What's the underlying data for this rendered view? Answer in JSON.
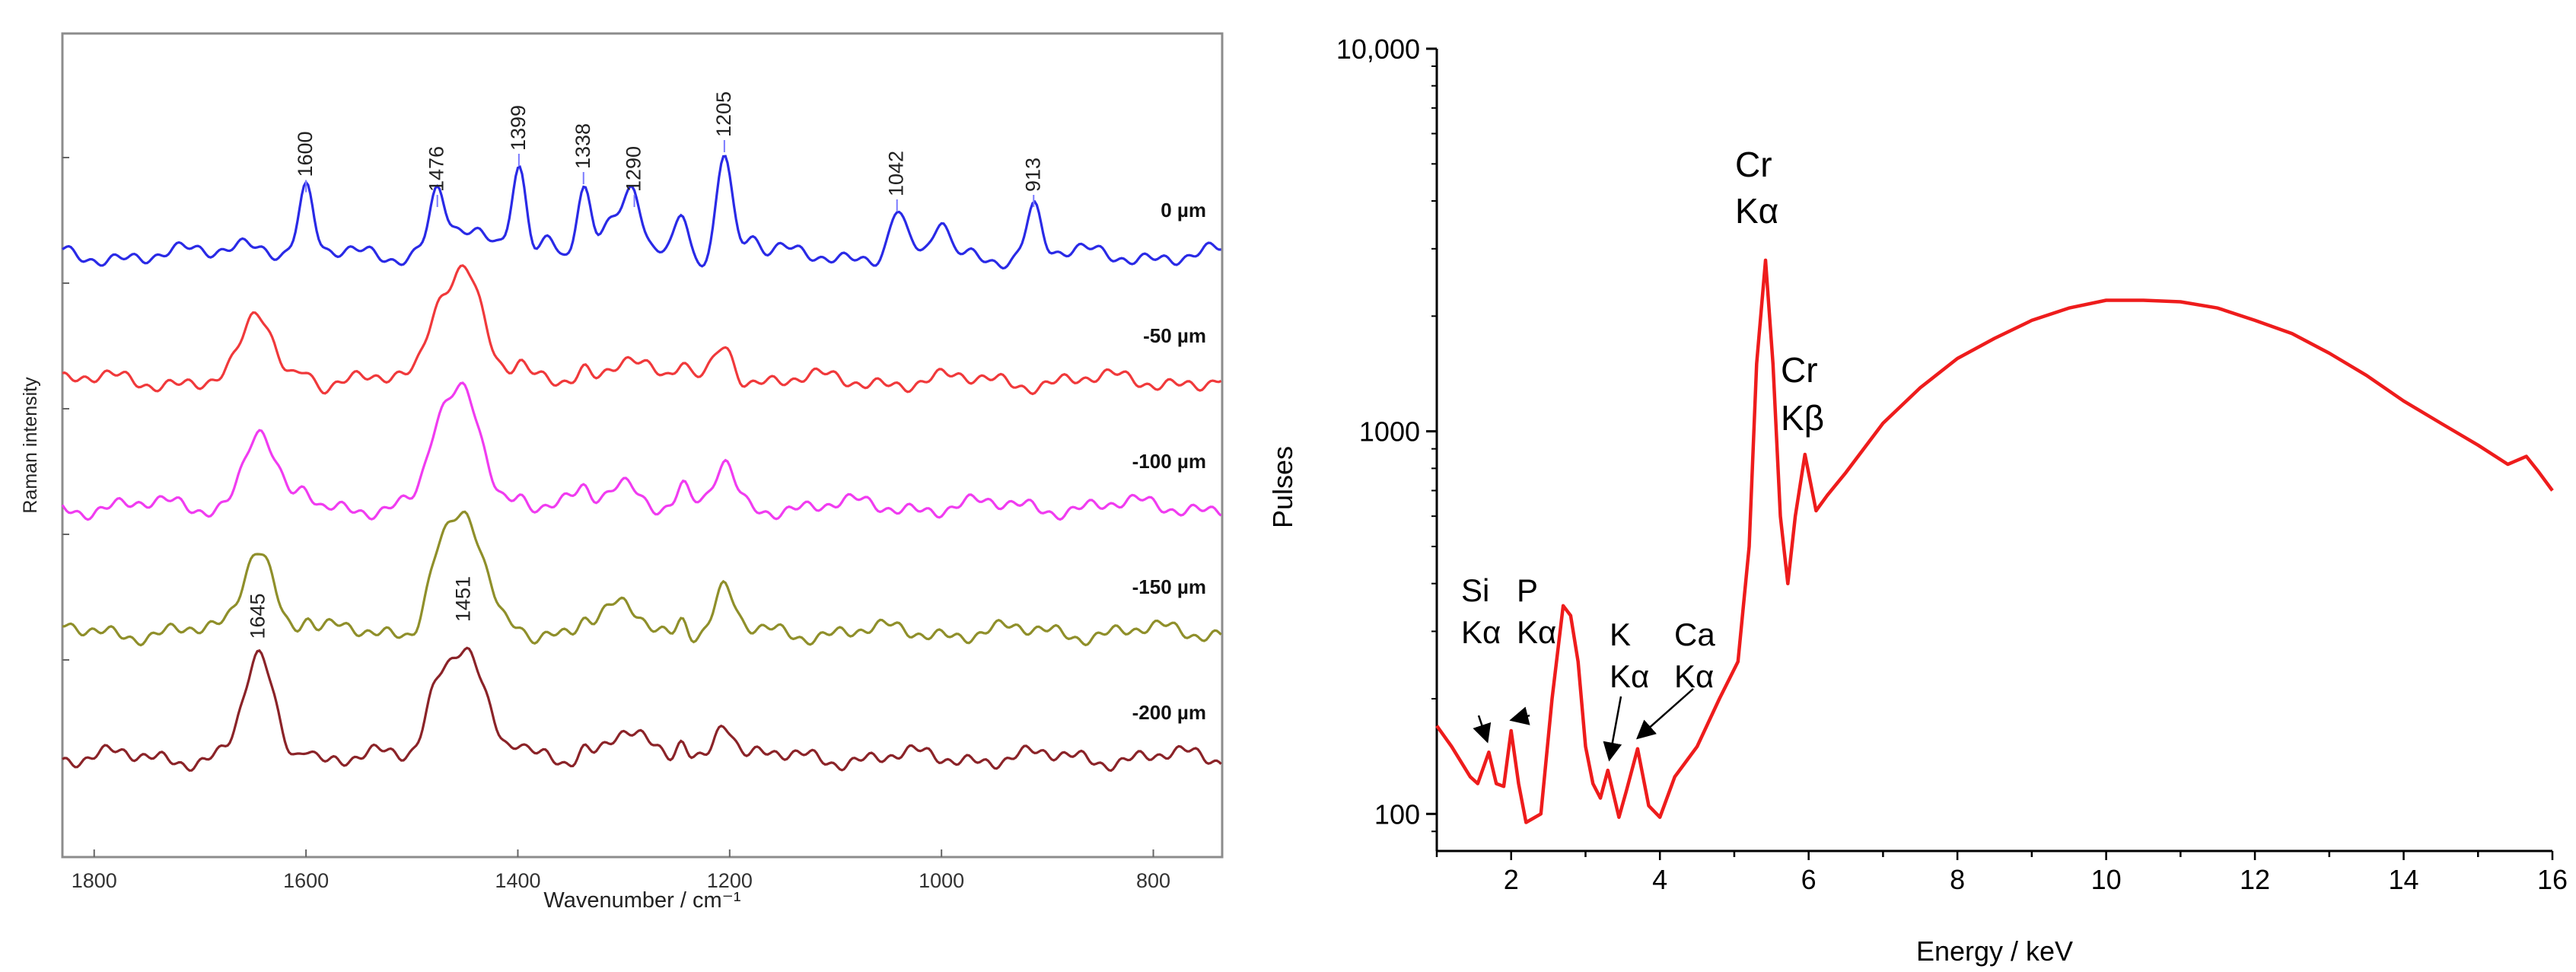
{
  "chart_data": [
    {
      "type": "line",
      "title": "",
      "xlabel": "Wavenumber / cm⁻¹",
      "ylabel": "Raman intensity",
      "xlim": [
        1830,
        735
      ],
      "x_ticks": [
        1800,
        1600,
        1400,
        1200,
        1000,
        800
      ],
      "y_ticks_labeled": false,
      "grid": false,
      "legend": "none",
      "series": [
        {
          "name": "0 µm",
          "label": "0 µm",
          "color": "#2a2ae6",
          "offset": 0
        },
        {
          "name": "-50 µm",
          "label": "-50 µm",
          "color": "#f0393b",
          "offset": 1
        },
        {
          "name": "-100 µm",
          "label": "-100 µm",
          "color": "#f03cf0",
          "offset": 2
        },
        {
          "name": "-150 µm",
          "label": "-150 µm",
          "color": "#8f8f2a",
          "offset": 3
        },
        {
          "name": "-200 µm",
          "label": "-200 µm",
          "color": "#8b2328",
          "offset": 4
        }
      ],
      "peaks_top": [
        {
          "x": 1600,
          "label": "1600",
          "height": 0.55
        },
        {
          "x": 1476,
          "label": "1476",
          "height": 0.42
        },
        {
          "x": 1399,
          "label": "1399",
          "height": 0.78
        },
        {
          "x": 1338,
          "label": "1338",
          "height": 0.62
        },
        {
          "x": 1290,
          "label": "1290",
          "height": 0.42
        },
        {
          "x": 1205,
          "label": "1205",
          "height": 0.9
        },
        {
          "x": 1042,
          "label": "1042",
          "height": 0.38
        },
        {
          "x": 913,
          "label": "913",
          "height": 0.42
        }
      ],
      "peaks_bottom": [
        {
          "x": 1645,
          "label": "1645",
          "height": 0.85
        },
        {
          "x": 1451,
          "label": "1451",
          "height": 1.0
        }
      ],
      "secondary_peaks": [
        {
          "x": 1245,
          "height": 0.4
        },
        {
          "x": 1000,
          "height": 0.3
        },
        {
          "x": 1180,
          "height": 0.18
        },
        {
          "x": 1370,
          "height": 0.18
        }
      ]
    },
    {
      "type": "line",
      "title": "",
      "xlabel": "Energy / keV",
      "ylabel": "Pulses",
      "yscale": "log",
      "xlim": [
        1,
        16
      ],
      "ylim": [
        80,
        10000
      ],
      "x_ticks": [
        2,
        4,
        6,
        8,
        10,
        12,
        14,
        16
      ],
      "y_ticks": [
        100,
        1000,
        10000
      ],
      "y_tick_labels": [
        "100",
        "1000",
        "10,000"
      ],
      "grid": false,
      "legend": "none",
      "series": [
        {
          "name": "spectrum",
          "color": "#ee1c1c",
          "x": [
            1.0,
            1.2,
            1.45,
            1.55,
            1.7,
            1.8,
            1.9,
            2.0,
            2.1,
            2.2,
            2.4,
            2.55,
            2.7,
            2.8,
            2.9,
            3.0,
            3.1,
            3.2,
            3.3,
            3.45,
            3.55,
            3.7,
            3.85,
            4.0,
            4.2,
            4.5,
            4.8,
            5.05,
            5.2,
            5.3,
            5.42,
            5.52,
            5.62,
            5.72,
            5.82,
            5.95,
            6.1,
            6.25,
            6.5,
            7.0,
            7.5,
            8.0,
            8.5,
            9.0,
            9.5,
            10.0,
            10.5,
            11.0,
            11.5,
            12.0,
            12.5,
            13.0,
            13.5,
            14.0,
            14.5,
            15.0,
            15.4,
            15.65,
            15.8,
            16.0
          ],
          "y": [
            170,
            150,
            125,
            120,
            145,
            120,
            118,
            165,
            120,
            95,
            100,
            200,
            350,
            330,
            250,
            150,
            120,
            110,
            130,
            98,
            115,
            148,
            105,
            98,
            125,
            150,
            200,
            250,
            500,
            1500,
            2800,
            1500,
            600,
            400,
            600,
            870,
            620,
            680,
            780,
            1050,
            1300,
            1550,
            1750,
            1950,
            2100,
            2200,
            2200,
            2180,
            2100,
            1950,
            1800,
            1600,
            1400,
            1200,
            1050,
            920,
            820,
            860,
            790,
            700
          ]
        }
      ],
      "annotations": [
        {
          "line1": "Si",
          "line2": "Kα",
          "x": 1.68,
          "y": 145
        },
        {
          "line1": "P",
          "line2": "Kα",
          "x": 2.0,
          "y": 165
        },
        {
          "line1": "K",
          "line2": "Kα",
          "x": 3.32,
          "y": 130
        },
        {
          "line1": "Ca",
          "line2": "Kα",
          "x": 3.7,
          "y": 148
        },
        {
          "line1": "Cr",
          "line2": "Kα",
          "x": 5.42,
          "y": 2800
        },
        {
          "line1": "Cr",
          "line2": "Kβ",
          "x": 5.95,
          "y": 870
        }
      ]
    }
  ]
}
